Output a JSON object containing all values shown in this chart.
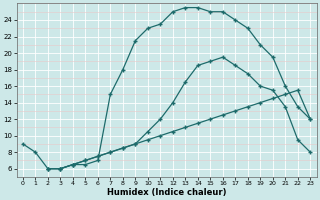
{
  "xlabel": "Humidex (Indice chaleur)",
  "bg_color": "#cde8e8",
  "grid_color": "#ffffff",
  "line_color": "#1e6b6b",
  "xlim": [
    -0.5,
    23.5
  ],
  "ylim": [
    5.0,
    26.0
  ],
  "xticks": [
    0,
    1,
    2,
    3,
    4,
    5,
    6,
    7,
    8,
    9,
    10,
    11,
    12,
    13,
    14,
    15,
    16,
    17,
    18,
    19,
    20,
    21,
    22,
    23
  ],
  "yticks": [
    6,
    8,
    10,
    12,
    14,
    16,
    18,
    20,
    22,
    24
  ],
  "curve1_x": [
    0,
    1,
    2,
    3,
    4,
    5,
    6,
    7,
    8,
    9,
    10,
    11,
    12,
    13,
    14,
    15,
    16,
    17,
    18,
    19,
    20,
    21,
    22,
    23
  ],
  "curve1_y": [
    9.0,
    8.0,
    6.0,
    6.0,
    6.5,
    6.5,
    7.0,
    15.0,
    18.0,
    21.5,
    23.0,
    23.5,
    25.0,
    25.5,
    25.5,
    25.0,
    25.0,
    24.0,
    23.0,
    21.0,
    19.5,
    16.0,
    13.5,
    12.0
  ],
  "curve2_x": [
    2,
    3,
    4,
    5,
    6,
    7,
    8,
    9,
    10,
    11,
    12,
    13,
    14,
    15,
    16,
    17,
    18,
    19,
    20,
    21,
    22,
    23
  ],
  "curve2_y": [
    6.0,
    6.0,
    6.5,
    7.0,
    7.5,
    8.0,
    8.5,
    9.0,
    10.5,
    12.0,
    14.0,
    16.5,
    18.5,
    19.0,
    19.5,
    18.5,
    17.5,
    16.0,
    15.5,
    13.5,
    9.5,
    8.0
  ],
  "curve3_x": [
    2,
    3,
    4,
    5,
    6,
    7,
    8,
    9,
    10,
    11,
    12,
    13,
    14,
    15,
    16,
    17,
    18,
    19,
    20,
    21,
    22,
    23
  ],
  "curve3_y": [
    6.0,
    6.0,
    6.5,
    7.0,
    7.5,
    8.0,
    8.5,
    9.0,
    9.5,
    10.0,
    10.5,
    11.0,
    11.5,
    12.0,
    12.5,
    13.0,
    13.5,
    14.0,
    14.5,
    15.0,
    15.5,
    12.0
  ]
}
